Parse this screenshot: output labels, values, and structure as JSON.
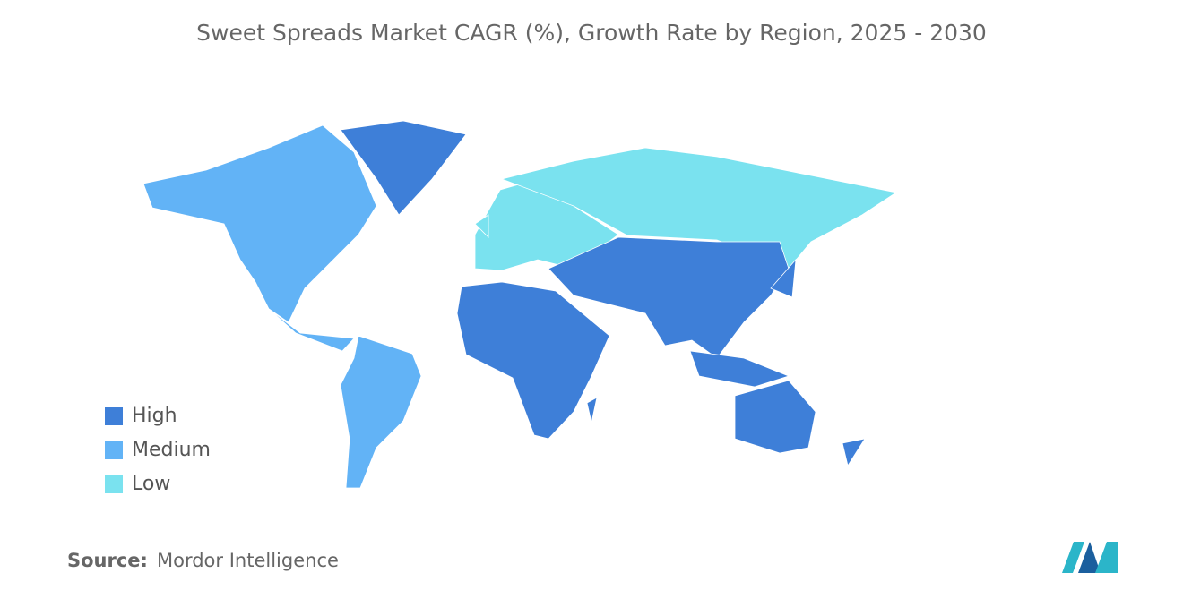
{
  "title": "Sweet Spreads Market CAGR (%), Growth Rate by Region, 2025 - 2030",
  "legend": [
    {
      "name": "High",
      "color": "#3e7fd8"
    },
    {
      "name": "Medium",
      "color": "#62b3f6"
    },
    {
      "name": "Low",
      "color": "#7ae2ef"
    }
  ],
  "source": {
    "label": "Source:",
    "text": "Mordor Intelligence"
  }
}
